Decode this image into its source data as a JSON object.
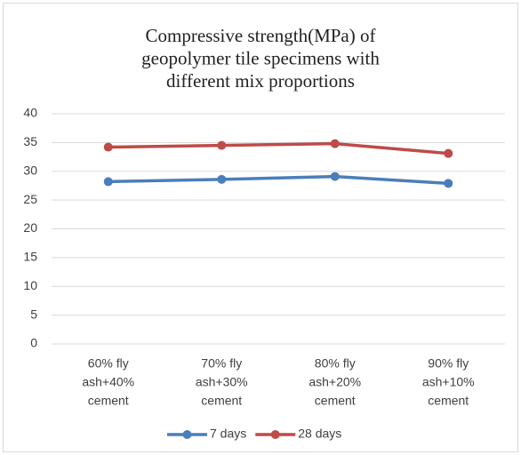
{
  "chart_data": {
    "type": "line",
    "title": [
      "Compressive strength(MPa) of",
      "geopolymer tile specimens with",
      "different mix proportions"
    ],
    "categories": [
      [
        "60% fly",
        "ash+40%",
        "cement"
      ],
      [
        "70% fly",
        "ash+30%",
        "cement"
      ],
      [
        "80% fly",
        "ash+20%",
        "cement"
      ],
      [
        "90% fly",
        "ash+10%",
        "cement"
      ]
    ],
    "series": [
      {
        "name": "7 days",
        "color": "#4a7ebb",
        "values": [
          28.2,
          28.6,
          29.1,
          27.9
        ]
      },
      {
        "name": "28 days",
        "color": "#be4b48",
        "values": [
          34.2,
          34.5,
          34.8,
          33.1
        ]
      }
    ],
    "ylim": [
      0,
      40
    ],
    "yticks": [
      0,
      5,
      10,
      15,
      20,
      25,
      30,
      35,
      40
    ],
    "grid": true,
    "legend": "bottom"
  }
}
